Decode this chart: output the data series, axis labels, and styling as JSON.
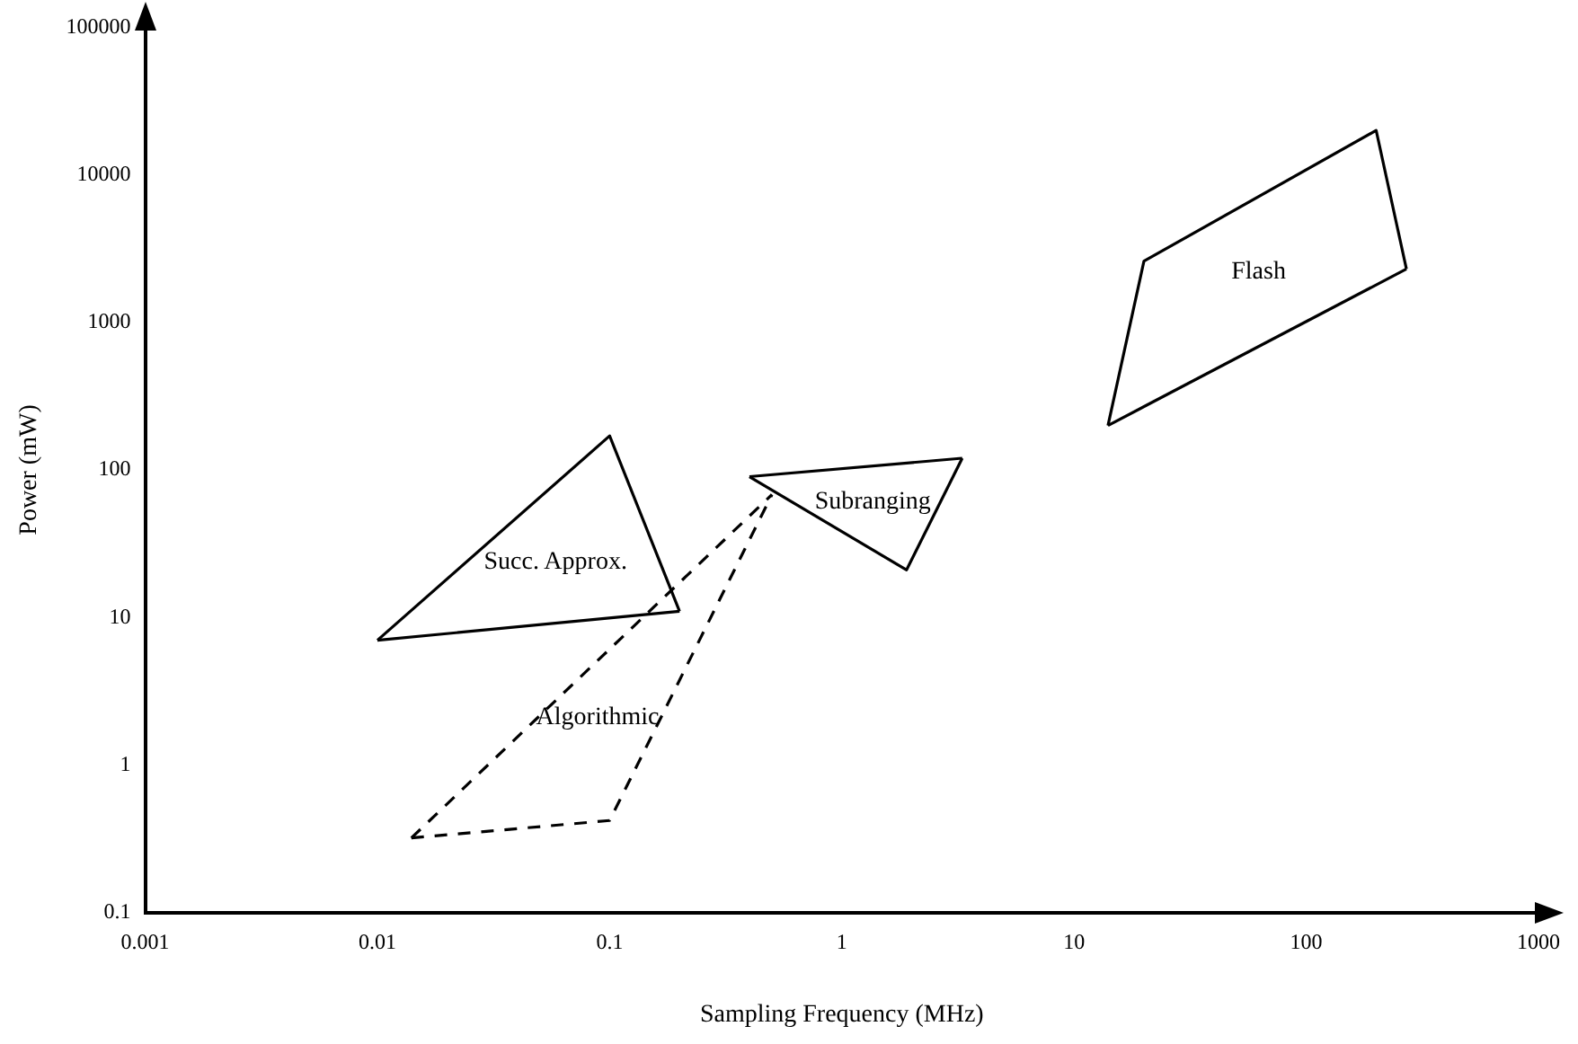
{
  "chart_data": {
    "type": "line",
    "xlabel": "Sampling Frequency (MHz)",
    "ylabel": "Power (mW)",
    "log": "xy",
    "grid": false,
    "legend": false,
    "marker": "none",
    "xlim": [
      0.001,
      1000
    ],
    "xticks": [
      0.001,
      0.01,
      0.1,
      1,
      10,
      100,
      1000
    ],
    "ylim": [
      0.1,
      100000
    ],
    "yticks": [
      0.1,
      1,
      10,
      100,
      1000,
      10000,
      100000
    ],
    "series": [
      {
        "name": "Succ. Approx.",
        "color": "#000000",
        "line_style": "solid",
        "x": [
          0.01,
          0.1,
          0.2
        ],
        "values": [
          7,
          170,
          11
        ]
      },
      {
        "color": "#000000",
        "line_style": "solid",
        "x": [
          0.01,
          0.2
        ],
        "values": [
          7,
          11
        ]
      },
      {
        "name": "Subranging",
        "color": "#000000",
        "line_style": "solid",
        "x": [
          0.4,
          1.9,
          3.3
        ],
        "values": [
          90,
          21,
          120
        ]
      },
      {
        "color": "#000000",
        "line_style": "solid",
        "x": [
          0.4,
          3.3
        ],
        "values": [
          90,
          120
        ]
      },
      {
        "name": "Flash",
        "color": "#000000",
        "line_style": "solid",
        "x": [
          14,
          20,
          200,
          270
        ],
        "values": [
          200,
          2600,
          20000,
          2300
        ]
      },
      {
        "color": "#000000",
        "line_style": "solid",
        "x": [
          14,
          270
        ],
        "values": [
          200,
          2300
        ]
      },
      {
        "name": "Algorithmic",
        "color": "#000000",
        "line_style": "dashed",
        "x": [
          0.014,
          0.1,
          0.5
        ],
        "values": [
          0.32,
          0.42,
          68
        ]
      },
      {
        "color": "#000000",
        "line_style": "dashed",
        "x": [
          0.014,
          0.5
        ],
        "values": [
          0.32,
          68
        ]
      }
    ]
  }
}
